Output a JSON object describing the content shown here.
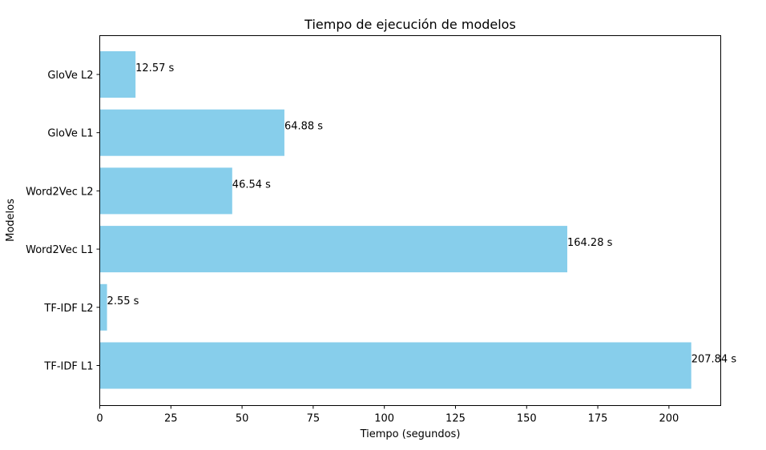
{
  "chart_data": {
    "type": "bar",
    "orientation": "horizontal",
    "title": "Tiempo de ejecución de modelos",
    "xlabel": "Tiempo (segundos)",
    "ylabel": "Modelos",
    "categories": [
      "TF-IDF L1",
      "TF-IDF L2",
      "Word2Vec L1",
      "Word2Vec L2",
      "GloVe L1",
      "GloVe L2"
    ],
    "values": [
      207.84,
      2.55,
      164.28,
      46.54,
      64.88,
      12.57
    ],
    "value_labels": [
      "207.84 s",
      "2.55 s",
      "164.28 s",
      "46.54 s",
      "64.88 s",
      "12.57 s"
    ],
    "xlim": [
      0,
      218.2
    ],
    "xticks": [
      0,
      25,
      50,
      75,
      100,
      125,
      150,
      175,
      200
    ],
    "bar_color": "#87CEEB",
    "grid": false,
    "legend": "none"
  }
}
